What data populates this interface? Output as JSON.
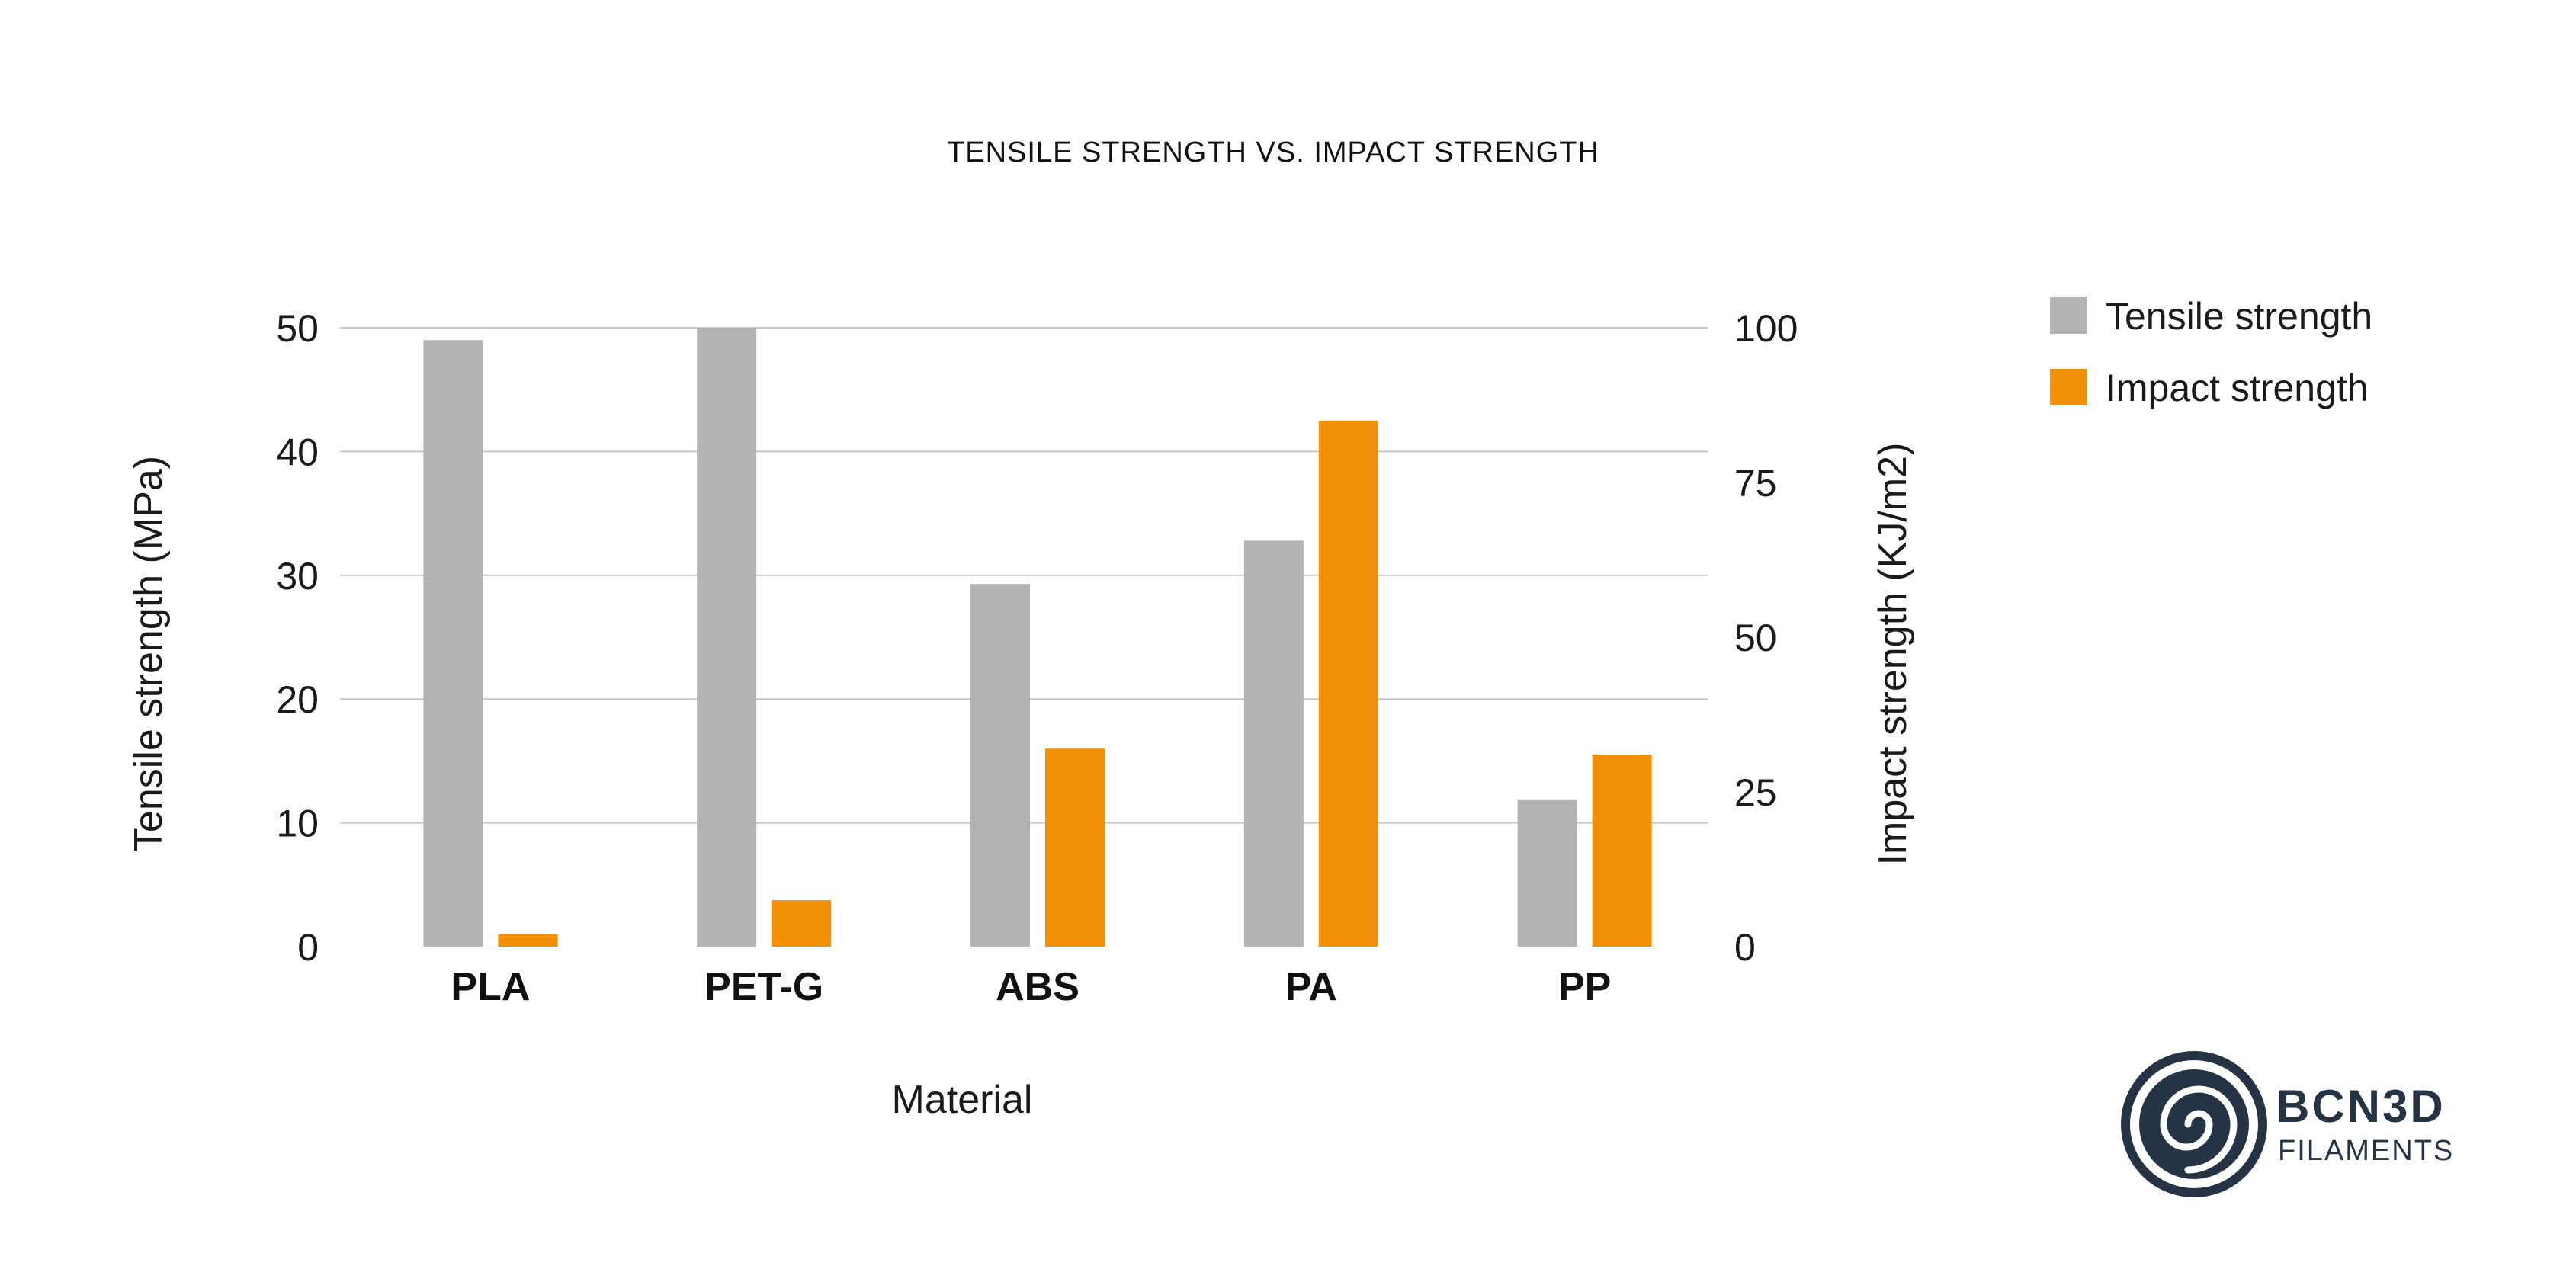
{
  "chart_data": {
    "type": "bar",
    "title": "TENSILE STRENGTH VS. IMPACT STRENGTH",
    "xlabel": "Material",
    "ylabel": "Tensile strength (MPa)",
    "y2label": "Impact strength (KJ/m2)",
    "categories": [
      "PLA",
      "PET-G",
      "ABS",
      "PA",
      "PP"
    ],
    "ylim": [
      0,
      50
    ],
    "y2lim": [
      0,
      100
    ],
    "yticks": [
      "0",
      "10",
      "20",
      "30",
      "40",
      "50"
    ],
    "y2ticks": [
      "0",
      "25",
      "50",
      "75",
      "100"
    ],
    "grid": true,
    "legend_position": "top-right",
    "series": [
      {
        "name": "Tensile strength",
        "axis": "left",
        "color": "#b3b3b3",
        "values": [
          49,
          50,
          29.3,
          32.8,
          11.9
        ]
      },
      {
        "name": "Impact strength",
        "axis": "right",
        "color": "#f29107",
        "values": [
          2,
          7.5,
          32,
          85,
          31
        ]
      }
    ]
  },
  "logo": {
    "icon": "spiral-logo-icon",
    "name": "BCN3D",
    "subtitle": "FILAMENTS",
    "color": "#243444"
  }
}
